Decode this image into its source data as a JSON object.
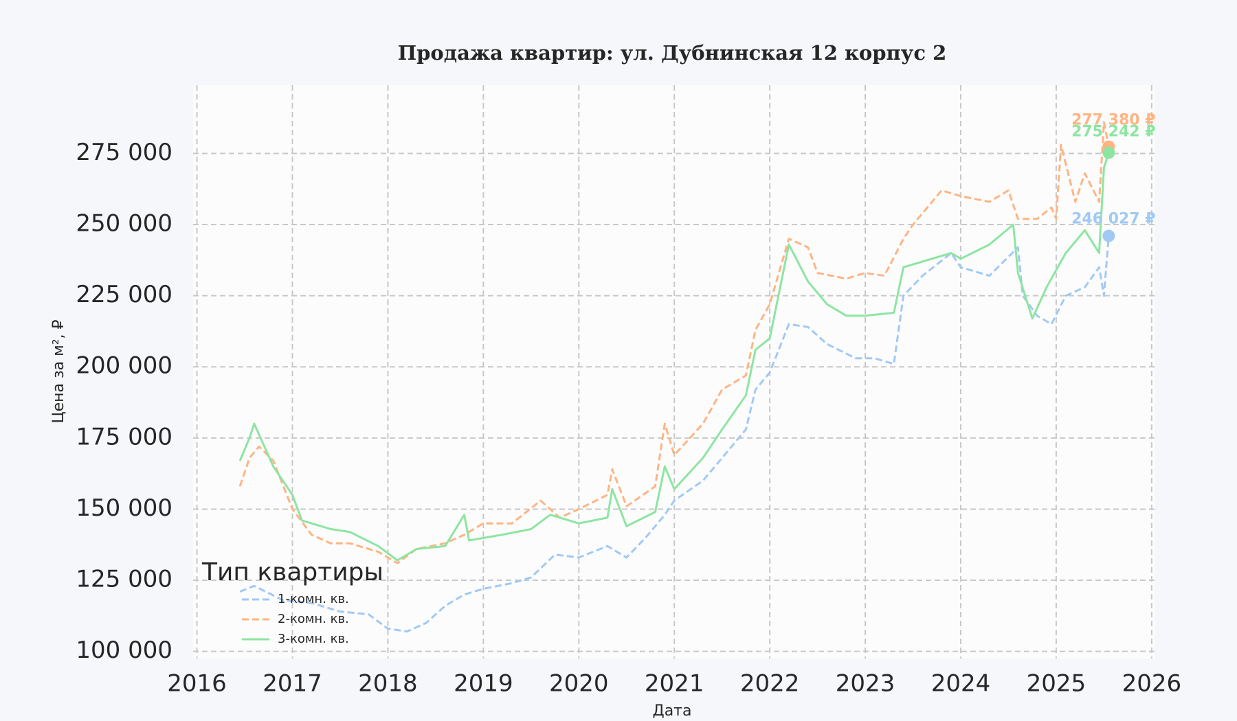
{
  "chart_data": {
    "type": "line",
    "title": "Продажа квартир: ул. Дубнинская 12 корпус 2",
    "x_label": "Дата",
    "y_label": "Цена за м², ₽",
    "legend_title": "Тип квартиры",
    "legend": "lower left",
    "grid": true,
    "xlim": [
      2015.96,
      2026.03
    ],
    "xticks": [
      2016,
      2017,
      2018,
      2019,
      2020,
      2021,
      2022,
      2023,
      2024,
      2025,
      2026
    ],
    "ylim": [
      97500,
      299000
    ],
    "yticks": [
      {
        "value": 100000,
        "label": "100 000"
      },
      {
        "value": 125000,
        "label": "125 000"
      },
      {
        "value": 150000,
        "label": "150 000"
      },
      {
        "value": 175000,
        "label": "175 000"
      },
      {
        "value": 200000,
        "label": "200 000"
      },
      {
        "value": 225000,
        "label": "225 000"
      },
      {
        "value": 250000,
        "label": "250 000"
      },
      {
        "value": 275000,
        "label": "275 000"
      }
    ],
    "series": [
      {
        "name": "1-комн. кв.",
        "color": "#a1c9f4",
        "dash": true,
        "x": [
          2016.45,
          2016.6,
          2016.9,
          2017.2,
          2017.5,
          2017.8,
          2018.0,
          2018.2,
          2018.4,
          2018.6,
          2018.8,
          2019.0,
          2019.3,
          2019.5,
          2019.75,
          2020.0,
          2020.3,
          2020.5,
          2020.7,
          2020.9,
          2021.0,
          2021.3,
          2021.5,
          2021.75,
          2021.85,
          2022.0,
          2022.2,
          2022.4,
          2022.6,
          2022.9,
          2023.1,
          2023.3,
          2023.4,
          2023.6,
          2023.9,
          2024.0,
          2024.3,
          2024.6,
          2024.65,
          2024.8,
          2024.95,
          2025.1,
          2025.3,
          2025.45,
          2025.5,
          2025.55
        ],
        "values": [
          121000,
          123000,
          118000,
          117000,
          114000,
          113000,
          108000,
          107000,
          110000,
          116000,
          120000,
          122000,
          124000,
          126000,
          134000,
          133000,
          137000,
          133000,
          140000,
          148000,
          153000,
          160000,
          168000,
          178000,
          192000,
          198000,
          215000,
          214000,
          208000,
          203000,
          203000,
          201000,
          225000,
          232000,
          240000,
          235000,
          232000,
          242000,
          225000,
          218000,
          215000,
          225000,
          228000,
          235000,
          225000,
          246027
        ]
      },
      {
        "name": "2-комн. кв.",
        "color": "#ffb482",
        "dash": true,
        "x": [
          2016.45,
          2016.55,
          2016.65,
          2016.8,
          2017.0,
          2017.2,
          2017.4,
          2017.6,
          2017.9,
          2018.1,
          2018.3,
          2018.6,
          2018.8,
          2019.0,
          2019.3,
          2019.6,
          2019.8,
          2020.0,
          2020.3,
          2020.35,
          2020.5,
          2020.8,
          2020.9,
          2021.0,
          2021.3,
          2021.5,
          2021.75,
          2021.85,
          2022.0,
          2022.2,
          2022.4,
          2022.5,
          2022.8,
          2023.0,
          2023.2,
          2023.4,
          2023.5,
          2023.8,
          2024.0,
          2024.3,
          2024.5,
          2024.6,
          2024.8,
          2024.95,
          2025.0,
          2025.05,
          2025.2,
          2025.3,
          2025.45,
          2025.5,
          2025.55
        ],
        "values": [
          158000,
          168000,
          172000,
          167000,
          150000,
          141000,
          138000,
          138000,
          135000,
          131000,
          136000,
          138000,
          141000,
          145000,
          145000,
          153000,
          147000,
          150000,
          155000,
          164000,
          151000,
          158000,
          180000,
          169000,
          180000,
          192000,
          197000,
          213000,
          222000,
          245000,
          242000,
          233000,
          231000,
          233000,
          232000,
          245000,
          250000,
          262000,
          260000,
          258000,
          262000,
          252000,
          252000,
          256000,
          252000,
          278000,
          258000,
          268000,
          258000,
          286000,
          277380
        ]
      },
      {
        "name": "3-комн. кв.",
        "color": "#8de5a1",
        "dash": false,
        "x": [
          2016.45,
          2016.55,
          2016.6,
          2016.8,
          2017.0,
          2017.1,
          2017.4,
          2017.6,
          2017.9,
          2018.1,
          2018.3,
          2018.6,
          2018.8,
          2018.85,
          2019.2,
          2019.5,
          2019.7,
          2020.0,
          2020.3,
          2020.35,
          2020.5,
          2020.8,
          2020.9,
          2021.0,
          2021.3,
          2021.5,
          2021.75,
          2021.85,
          2022.0,
          2022.2,
          2022.4,
          2022.6,
          2022.8,
          2023.0,
          2023.3,
          2023.4,
          2023.6,
          2023.9,
          2024.0,
          2024.3,
          2024.55,
          2024.6,
          2024.75,
          2024.9,
          2025.1,
          2025.3,
          2025.45,
          2025.5,
          2025.55
        ],
        "values": [
          167000,
          175000,
          180000,
          165000,
          155000,
          146000,
          143000,
          142000,
          137000,
          132000,
          136000,
          137000,
          148000,
          139000,
          141000,
          143000,
          148000,
          145000,
          147000,
          157000,
          144000,
          149000,
          165000,
          157000,
          168000,
          178000,
          190000,
          206000,
          210000,
          243000,
          230000,
          222000,
          218000,
          218000,
          219000,
          235000,
          237000,
          240000,
          238000,
          243000,
          250000,
          233000,
          217000,
          228000,
          240000,
          248000,
          240000,
          270000,
          275242
        ]
      }
    ],
    "annotations": [
      {
        "x": 2025.55,
        "value": 277380,
        "label": "277 380 ₽",
        "color": "#ffb482",
        "dy": -38
      },
      {
        "x": 2025.55,
        "value": 275242,
        "label": "275 242 ₽",
        "color": "#8de5a1",
        "dy": -30
      },
      {
        "x": 2025.55,
        "value": 246027,
        "label": "246 027 ₽",
        "color": "#a1c9f4",
        "dy": -24
      }
    ]
  }
}
